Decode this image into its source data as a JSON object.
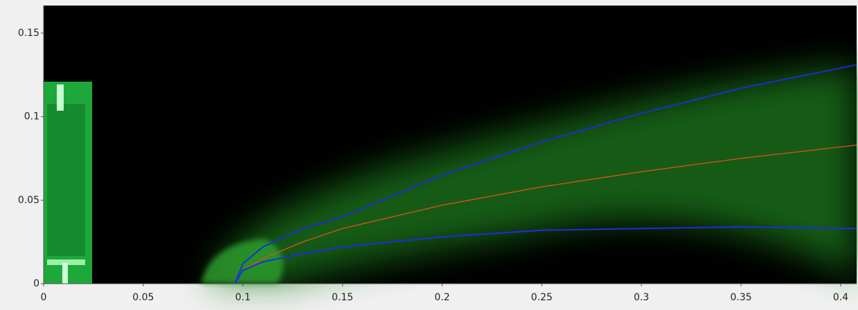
{
  "chart_data": {
    "type": "line",
    "x": [
      0.096,
      0.1,
      0.11,
      0.13,
      0.15,
      0.2,
      0.25,
      0.3,
      0.35,
      0.408
    ],
    "series": [
      {
        "color": "#1a2fd0",
        "values": [
          0,
          0.012,
          0.022,
          0.033,
          0.04,
          0.065,
          0.085,
          0.102,
          0.117,
          0.131
        ]
      },
      {
        "color": "#e0501e",
        "values": [
          0,
          0.008,
          0.015,
          0.025,
          0.033,
          0.047,
          0.058,
          0.067,
          0.075,
          0.083
        ]
      },
      {
        "color": "#1a2fe0",
        "values": [
          0,
          0.008,
          0.013,
          0.018,
          0.022,
          0.028,
          0.032,
          0.033,
          0.034,
          0.033
        ]
      }
    ],
    "xlim": [
      0,
      0.408
    ],
    "ylim": [
      0,
      0.1665
    ],
    "xticks": [
      0,
      0.05,
      0.1,
      0.15,
      0.2,
      0.25,
      0.3,
      0.35,
      0.4
    ],
    "yticks": [
      0,
      0.05,
      0.1,
      0.15
    ]
  }
}
